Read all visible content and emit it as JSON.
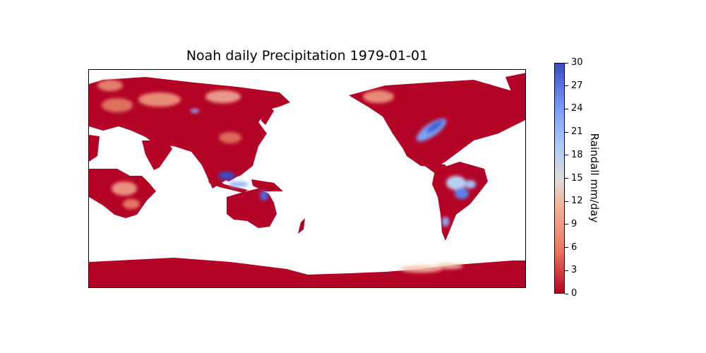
{
  "title": "Noah daily Precipitation 1979-01-01",
  "colorbar": {
    "label": "Raindall mm/day",
    "min": 0,
    "max": 30,
    "ticks": [
      "0",
      "3",
      "6",
      "9",
      "12",
      "15",
      "18",
      "21",
      "24",
      "27",
      "30"
    ],
    "colormap": "coolwarm_r",
    "colors": {
      "low": "#b40426",
      "mid": "#dddddd",
      "high": "#3b4cc0"
    }
  },
  "map": {
    "projection": "PlateCarree, central longitude 180",
    "variable": "daily precipitation (mm/day)",
    "high_rain_regions": [
      "Eastern United States",
      "Indonesia / Borneo",
      "Amazon basin",
      "Eastern Australia",
      "Southern Chile"
    ],
    "ocean": "no data (white)"
  }
}
